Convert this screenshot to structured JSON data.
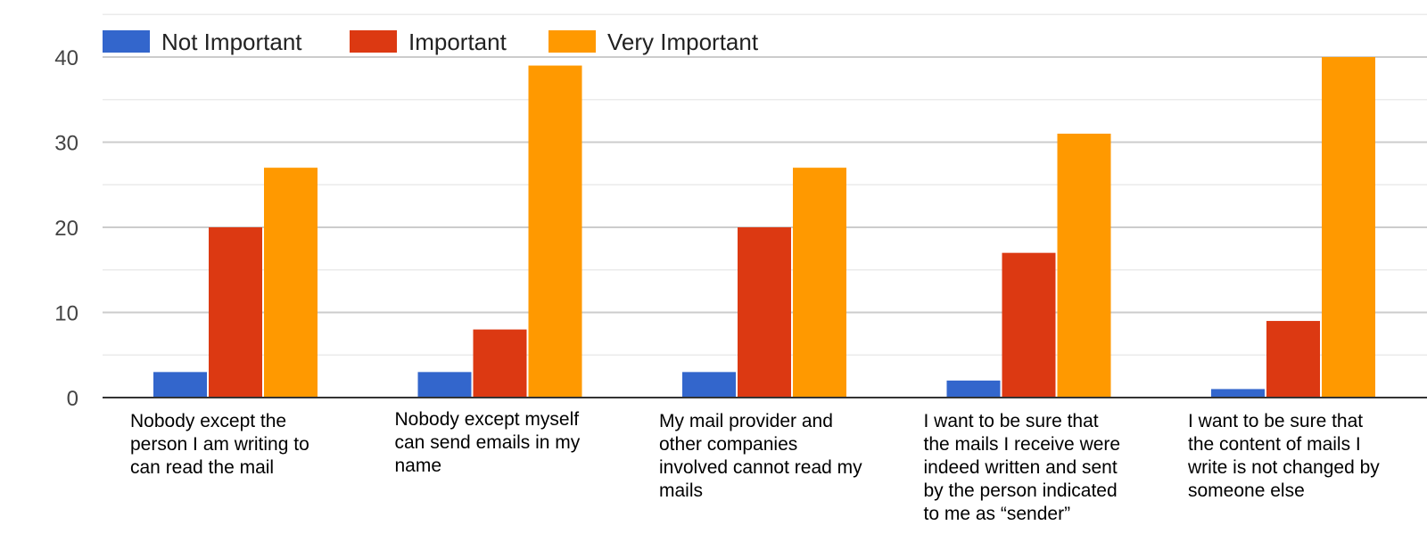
{
  "chart_data": {
    "type": "bar",
    "categories": [
      "Nobody except the person I am writing to can read the mail",
      "Nobody except myself can send emails in my name",
      "My mail provider and other companies involved cannot read my mails",
      "I want to be sure that the mails I receive were indeed written and sent by the person indicated to me as “sender”",
      "I want to be sure that the content of mails I write is not changed by someone else"
    ],
    "series": [
      {
        "name": "Not Important",
        "color": "#3366cc",
        "values": [
          3,
          3,
          3,
          2,
          1
        ]
      },
      {
        "name": "Important",
        "color": "#dc3912",
        "values": [
          20,
          8,
          20,
          17,
          9
        ]
      },
      {
        "name": "Very Important",
        "color": "#ff9900",
        "values": [
          27,
          39,
          27,
          31,
          40
        ]
      }
    ],
    "ylim": [
      0,
      40
    ],
    "yticks": [
      "0",
      "10",
      "20",
      "30",
      "40"
    ],
    "grid": true,
    "legend_position": "top-left"
  }
}
